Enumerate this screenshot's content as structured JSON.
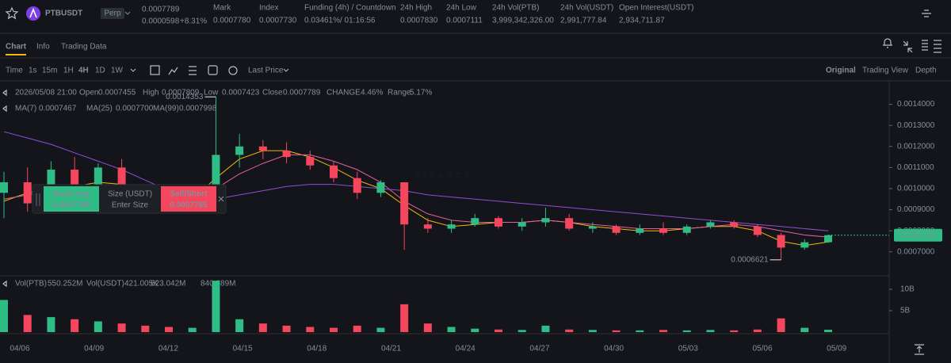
{
  "header": {
    "symbol": "PTBUSDT",
    "badge": "Perp",
    "price": "0.0007789",
    "change_abs": "0.0000598",
    "change_pct": "+8.31%",
    "stats": [
      {
        "label": "Mark",
        "value": "0.0007780"
      },
      {
        "label": "Index",
        "value": "0.0007730"
      },
      {
        "label": "Funding (4h) / Countdown",
        "value": "0.03461%",
        "value2": "/ 01:16:56"
      },
      {
        "label": "24h High",
        "value": "0.0007830"
      },
      {
        "label": "24h Low",
        "value": "0.0007111"
      },
      {
        "label": "24h Vol(PTB)",
        "value": "3,999,342,326.00"
      },
      {
        "label": "24h Vol(USDT)",
        "value": "2,991,777.84"
      },
      {
        "label": "Open Interest(USDT)",
        "value": "2,934,711.87"
      }
    ]
  },
  "tabs": [
    "Chart",
    "Info",
    "Trading Data"
  ],
  "toolbar": {
    "intervals": [
      "Time",
      "1s",
      "15m",
      "1H",
      "4H",
      "1D",
      "1W"
    ],
    "price_type": "Last Price",
    "views": [
      "Original",
      "Trading View",
      "Depth"
    ]
  },
  "info": {
    "time": "2026/05/08 21:00",
    "open": "Open",
    "high": "High",
    "low": "Low",
    "close": "Close",
    "change_label": "CHANGE",
    "change": "4.46%",
    "range_label": "Range",
    "range": "5.17%"
  },
  "order_panel": {
    "buy": "Buy/Long",
    "buy_price": "0.0007786",
    "size": "Size (USDT)",
    "size_placeholder": "Enter Size",
    "sell": "Sell/Short",
    "sell_price": "0.0007785"
  },
  "chart_data": {
    "type": "candlestick",
    "watermark": "BINANCE",
    "up_color": "#2ebd85",
    "down_color": "#f6465d",
    "grid": false,
    "ylim": [
      0.00059,
      0.0015
    ],
    "yticks": [
      {
        "value": 0.0007,
        "label": "0.0007000"
      },
      {
        "value": 0.0008,
        "label": "0.0008000"
      },
      {
        "value": 0.0009,
        "label": "0.0009000"
      },
      {
        "value": 0.001,
        "label": "0.0010000"
      },
      {
        "value": 0.0011,
        "label": "0.0011000"
      },
      {
        "value": 0.0012,
        "label": "0.0012000"
      },
      {
        "value": 0.0013,
        "label": "0.0013000"
      },
      {
        "value": 0.0014,
        "label": "0.0014000"
      }
    ],
    "xtick_labels": [
      "04/06",
      "04/09",
      "04/12",
      "04/15",
      "04/18",
      "04/21",
      "04/24",
      "04/27",
      "04/30",
      "05/03",
      "05/06",
      "05/09"
    ],
    "open": [
      0.00098,
      0.00103,
      0.00093,
      0.00109,
      0.00096,
      0.0011,
      0.00099,
      0.00095,
      0.00094,
      0.00097,
      0.00116,
      0.0012,
      0.00118,
      0.00115,
      0.00111,
      0.00105,
      0.00098,
      0.00103,
      0.00083,
      0.00081,
      0.00083,
      0.00086,
      0.00082,
      0.00084,
      0.00086,
      0.00081,
      0.00082,
      0.00079,
      0.00081,
      0.00079,
      0.00082,
      0.00084,
      0.00082,
      0.00078,
      0.00072,
      0.0007455
    ],
    "high": [
      0.00108,
      0.0011,
      0.00113,
      0.00115,
      0.00112,
      0.00114,
      0.00102,
      0.00099,
      0.00098,
      0.0014353,
      0.00126,
      0.00123,
      0.00122,
      0.00118,
      0.00113,
      0.00108,
      0.00104,
      0.00103,
      0.00086,
      0.00085,
      0.00088,
      0.00087,
      0.00086,
      0.00091,
      0.00088,
      0.00084,
      0.00083,
      0.00083,
      0.00084,
      0.00083,
      0.00085,
      0.00085,
      0.00083,
      0.00079,
      0.00076,
      0.0007809
    ],
    "low": [
      0.00086,
      0.00089,
      0.0009,
      0.00092,
      0.00094,
      0.00096,
      0.00092,
      0.00091,
      0.00092,
      0.00095,
      0.0011,
      0.00114,
      0.00112,
      0.00109,
      0.00103,
      0.00095,
      0.00096,
      0.00071,
      0.00079,
      0.00079,
      0.00082,
      0.00081,
      0.0008,
      0.00082,
      0.0008,
      0.00079,
      0.00078,
      0.00078,
      0.00078,
      0.00078,
      0.00081,
      0.00081,
      0.00077,
      0.0006621,
      0.00071,
      0.0007423
    ],
    "close": [
      0.00103,
      0.00093,
      0.00109,
      0.00096,
      0.0011,
      0.00099,
      0.00095,
      0.00094,
      0.00097,
      0.00116,
      0.0012,
      0.00118,
      0.00115,
      0.00111,
      0.00105,
      0.00098,
      0.00103,
      0.00083,
      0.00081,
      0.00083,
      0.00086,
      0.00082,
      0.00084,
      0.00086,
      0.00081,
      0.00082,
      0.00079,
      0.00081,
      0.00079,
      0.00082,
      0.00084,
      0.00082,
      0.00078,
      0.00072,
      0.0007455,
      0.0007789
    ],
    "series": [
      {
        "name": "MA(7)",
        "color": "#f0b90b",
        "last_label": "0.0007467",
        "values": [
          0.00094,
          0.00098,
          0.001,
          0.00101,
          0.00103,
          0.00102,
          0.00099,
          0.00096,
          0.00095,
          0.00105,
          0.00114,
          0.00118,
          0.00118,
          0.00115,
          0.0011,
          0.00104,
          0.001,
          0.00092,
          0.00085,
          0.00082,
          0.00083,
          0.00084,
          0.00084,
          0.00085,
          0.00084,
          0.00082,
          0.00081,
          0.0008,
          0.0008,
          0.00081,
          0.00082,
          0.00082,
          0.0008,
          0.00075,
          0.00073,
          0.0007467
        ]
      },
      {
        "name": "MA(25)",
        "color": "#e45f9c",
        "last_label": "0.0007700",
        "values": [
          0.00095,
          0.00097,
          0.00099,
          0.001,
          0.00101,
          0.00101,
          0.001,
          0.00098,
          0.00097,
          0.001,
          0.00107,
          0.00112,
          0.00116,
          0.00116,
          0.00113,
          0.00109,
          0.00103,
          0.00094,
          0.00088,
          0.00085,
          0.00084,
          0.00084,
          0.00084,
          0.00085,
          0.00084,
          0.00083,
          0.00082,
          0.00081,
          0.00081,
          0.00081,
          0.00082,
          0.00083,
          0.00082,
          0.0008,
          0.00078,
          0.00077
        ]
      },
      {
        "name": "MA(99)",
        "color": "#8c4fd6",
        "last_label": "0.0007998",
        "values": [
          0.00127,
          0.00124,
          0.00121,
          0.00117,
          0.00113,
          0.00109,
          0.00104,
          0.00099,
          0.00096,
          0.00095,
          0.00097,
          0.00099,
          0.00101,
          0.00102,
          0.00102,
          0.00101,
          0.001,
          0.00099,
          0.00097,
          0.00096,
          0.00095,
          0.00094,
          0.00093,
          0.00092,
          0.00091,
          0.0009,
          0.00089,
          0.00088,
          0.00087,
          0.00086,
          0.00085,
          0.00084,
          0.00083,
          0.00082,
          0.00081,
          0.0007998
        ]
      }
    ],
    "volume": {
      "name": "Vol(PTB)",
      "last_label": "550.252M",
      "usdt_name": "Vol(USDT)",
      "usdt_label": "421.005K",
      "ma_labels": [
        {
          "label": "623.042M",
          "color": "#7ac7e0"
        },
        {
          "label": "840.689M",
          "color": "#e45f9c"
        }
      ],
      "ylim": [
        0,
        12400000000
      ],
      "yticks": [
        {
          "value": 5000000000,
          "label": "5B"
        },
        {
          "value": 10000000000,
          "label": "10B"
        }
      ],
      "values": [
        7500000000,
        4000000000,
        3500000000,
        3000000000,
        2500000000,
        2000000000,
        1500000000,
        1200000000,
        1000000000,
        12000000000,
        3000000000,
        2000000000,
        1500000000,
        1200000000,
        1000000000,
        1500000000,
        1000000000,
        6500000000,
        2000000000,
        1200000000,
        800000000,
        600000000,
        500000000,
        1500000000,
        600000000,
        500000000,
        400000000,
        400000000,
        500000000,
        400000000,
        500000000,
        400000000,
        600000000,
        3200000000,
        1000000000,
        550252000
      ]
    }
  }
}
